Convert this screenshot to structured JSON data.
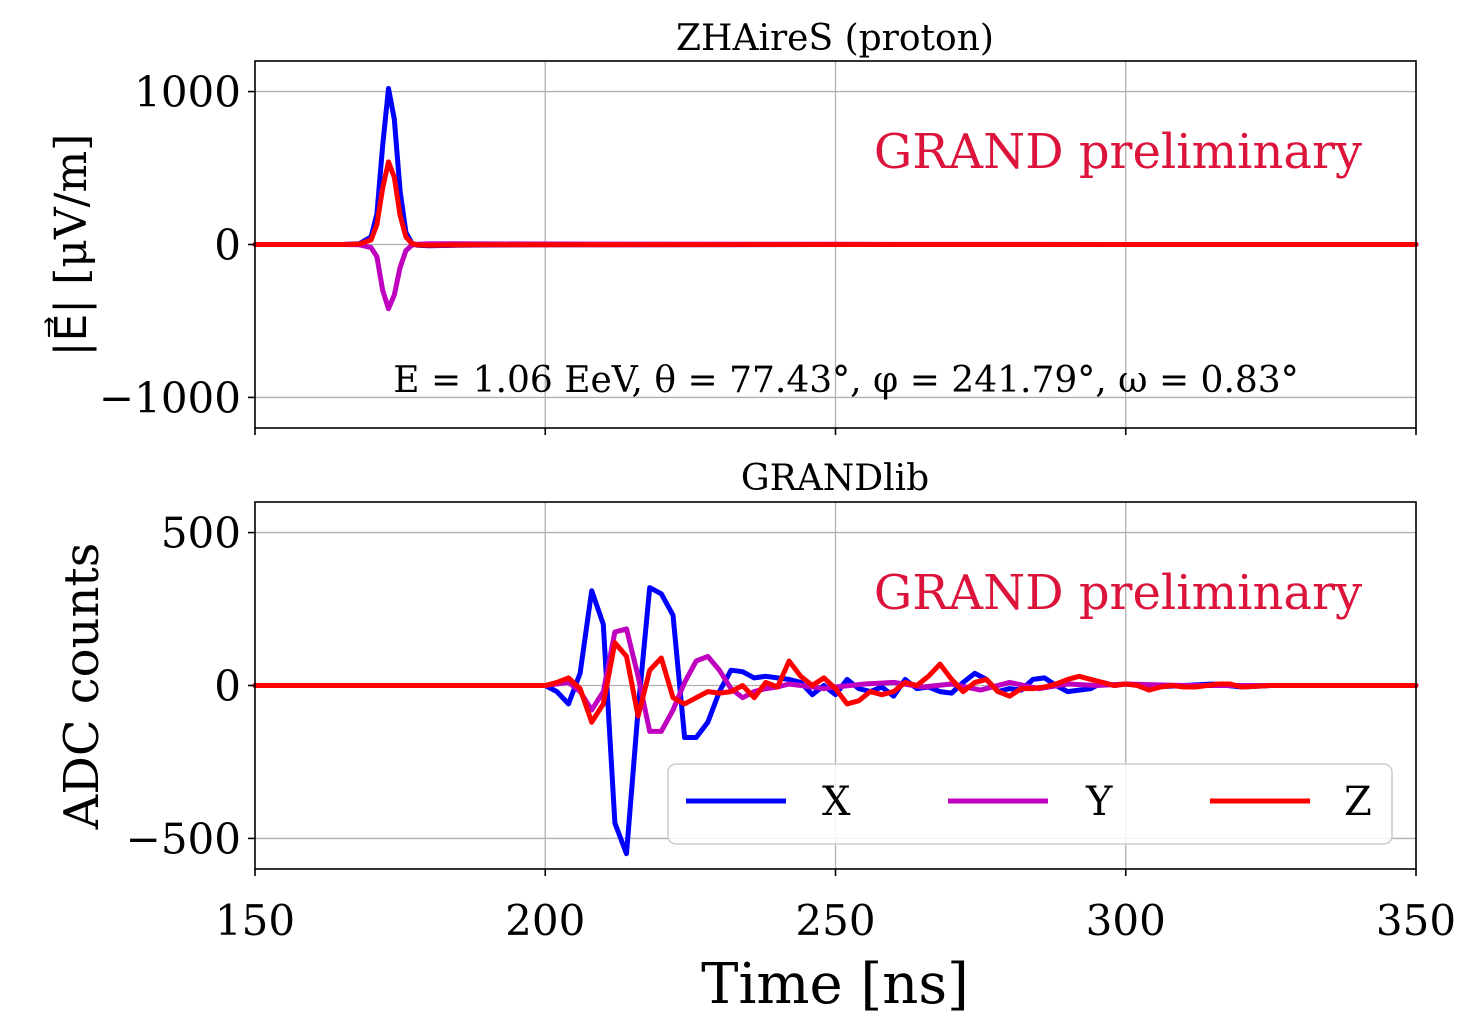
{
  "colors": {
    "X": "#0000ff",
    "Y": "#bf00bf",
    "Z": "#ff0000",
    "watermark": "#dc143c",
    "grid": "#b0b0b0"
  },
  "shared": {
    "xlabel": "Time [ns]",
    "xlim": [
      150,
      350
    ],
    "xticks": [
      150,
      200,
      250,
      300,
      350
    ],
    "xtick_labels": [
      "150",
      "200",
      "250",
      "300",
      "350"
    ]
  },
  "chart_data": [
    {
      "type": "line",
      "title": "ZHAireS (proton)",
      "ylabel": "|E⃗| [μV/m]",
      "xlim": [
        150,
        350
      ],
      "ylim": [
        -1200,
        1200
      ],
      "yticks": [
        -1000,
        0,
        1000
      ],
      "ytick_labels": [
        "−1000",
        "0",
        "1000"
      ],
      "watermark": "GRAND preliminary",
      "annotation": "E = 1.06 EeV,  θ = 77.43°,  φ = 241.79°,  ω = 0.83°",
      "series": [
        {
          "name": "X",
          "x": [
            150,
            165,
            168,
            170,
            171,
            172,
            173,
            174,
            175,
            176,
            177,
            178,
            180,
            185,
            190,
            200,
            250,
            300,
            350
          ],
          "y": [
            0,
            0,
            5,
            50,
            200,
            650,
            1020,
            820,
            350,
            80,
            10,
            -5,
            -8,
            -5,
            -3,
            -2,
            0,
            0,
            0
          ]
        },
        {
          "name": "Y",
          "x": [
            150,
            165,
            168,
            170,
            171,
            172,
            173,
            174,
            175,
            176,
            177,
            178,
            180,
            185,
            190,
            200,
            250,
            300,
            350
          ],
          "y": [
            0,
            0,
            -2,
            -20,
            -80,
            -300,
            -420,
            -330,
            -150,
            -40,
            -5,
            2,
            5,
            5,
            4,
            3,
            1,
            0,
            0
          ]
        },
        {
          "name": "Z",
          "x": [
            150,
            165,
            168,
            170,
            171,
            172,
            173,
            174,
            175,
            176,
            177,
            178,
            180,
            185,
            190,
            200,
            250,
            300,
            350
          ],
          "y": [
            0,
            0,
            3,
            30,
            130,
            370,
            540,
            440,
            190,
            50,
            8,
            -3,
            -5,
            -3,
            -2,
            -1,
            0,
            0,
            0
          ]
        }
      ]
    },
    {
      "type": "line",
      "title": "GRANDlib",
      "ylabel": "ADC counts",
      "xlabel": "Time [ns]",
      "xlim": [
        150,
        350
      ],
      "ylim": [
        -600,
        600
      ],
      "yticks": [
        -500,
        0,
        500
      ],
      "ytick_labels": [
        "−500",
        "0",
        "500"
      ],
      "watermark": "GRAND preliminary",
      "legend": {
        "placement": "lower-right",
        "ncol": 3,
        "entries": [
          "X",
          "Y",
          "Z"
        ]
      },
      "series": [
        {
          "name": "X",
          "x": [
            150,
            160,
            170,
            180,
            190,
            200,
            202,
            204,
            206,
            208,
            210,
            212,
            214,
            216,
            218,
            220,
            222,
            224,
            226,
            228,
            230,
            232,
            234,
            236,
            238,
            240,
            242,
            244,
            246,
            248,
            250,
            252,
            254,
            256,
            258,
            260,
            262,
            264,
            266,
            268,
            270,
            272,
            274,
            276,
            278,
            280,
            282,
            284,
            286,
            288,
            290,
            292,
            294,
            296,
            298,
            300,
            305,
            310,
            315,
            320,
            325,
            330,
            335,
            340,
            345,
            350
          ],
          "y": [
            0,
            0,
            0,
            0,
            0,
            0,
            -20,
            -60,
            40,
            310,
            200,
            -450,
            -550,
            -80,
            320,
            300,
            230,
            -170,
            -170,
            -120,
            -20,
            50,
            45,
            25,
            30,
            25,
            20,
            10,
            -30,
            0,
            -30,
            20,
            -10,
            -20,
            -5,
            -35,
            20,
            -10,
            -5,
            -20,
            -25,
            10,
            40,
            20,
            -20,
            -10,
            -15,
            20,
            25,
            0,
            -20,
            -15,
            -10,
            10,
            0,
            5,
            -5,
            0,
            5,
            -5,
            0,
            0,
            0,
            0,
            0,
            0
          ]
        },
        {
          "name": "Y",
          "x": [
            150,
            160,
            170,
            180,
            190,
            200,
            202,
            204,
            206,
            208,
            210,
            212,
            214,
            216,
            218,
            220,
            222,
            224,
            226,
            228,
            230,
            232,
            234,
            236,
            238,
            240,
            242,
            244,
            246,
            248,
            250,
            255,
            260,
            265,
            270,
            275,
            280,
            285,
            290,
            295,
            300,
            310,
            320,
            330,
            340,
            350
          ],
          "y": [
            0,
            0,
            0,
            0,
            0,
            0,
            5,
            10,
            -20,
            -80,
            -20,
            175,
            185,
            30,
            -150,
            -150,
            -80,
            10,
            80,
            95,
            50,
            -10,
            -40,
            -20,
            -10,
            -5,
            5,
            0,
            -5,
            -10,
            -5,
            5,
            10,
            -5,
            5,
            -15,
            10,
            -10,
            5,
            0,
            5,
            0,
            0,
            0,
            0,
            0
          ]
        },
        {
          "name": "Z",
          "x": [
            150,
            160,
            170,
            180,
            190,
            200,
            202,
            204,
            206,
            208,
            210,
            212,
            214,
            216,
            218,
            220,
            222,
            224,
            226,
            228,
            230,
            232,
            234,
            236,
            238,
            240,
            242,
            244,
            246,
            248,
            250,
            252,
            254,
            256,
            258,
            260,
            262,
            264,
            266,
            268,
            270,
            272,
            274,
            276,
            278,
            280,
            282,
            284,
            286,
            288,
            290,
            292,
            294,
            296,
            298,
            300,
            302,
            304,
            306,
            308,
            310,
            312,
            314,
            316,
            318,
            320,
            325,
            330,
            335,
            340,
            345,
            350
          ],
          "y": [
            0,
            0,
            0,
            0,
            0,
            0,
            10,
            25,
            -10,
            -120,
            -60,
            140,
            95,
            -100,
            50,
            90,
            -40,
            -60,
            -40,
            -20,
            -25,
            -20,
            0,
            -40,
            10,
            -5,
            80,
            30,
            0,
            25,
            -10,
            -60,
            -50,
            -20,
            -30,
            -20,
            10,
            0,
            30,
            70,
            20,
            -20,
            10,
            20,
            -20,
            -35,
            -10,
            -10,
            -5,
            5,
            20,
            30,
            20,
            10,
            0,
            5,
            0,
            -15,
            -5,
            0,
            -5,
            -5,
            0,
            5,
            5,
            -5,
            0,
            0,
            0,
            0,
            0,
            0
          ]
        }
      ]
    }
  ]
}
